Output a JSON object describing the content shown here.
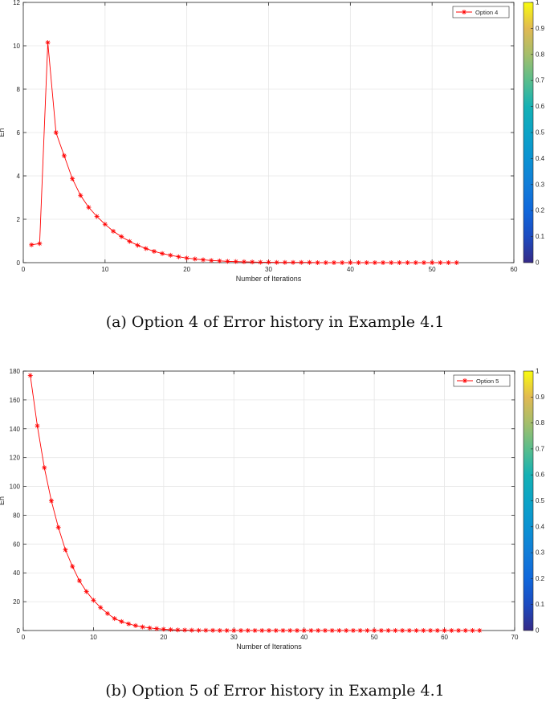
{
  "chart_data": [
    {
      "type": "line",
      "caption": "(a) Option 4 of Error history in Example 4.1",
      "xlabel": "Number of Iterations",
      "ylabel": "En",
      "xlim": [
        0,
        60
      ],
      "ylim": [
        0,
        12
      ],
      "xticks": [
        0,
        10,
        20,
        30,
        40,
        50,
        60
      ],
      "yticks": [
        0,
        2,
        4,
        6,
        8,
        10,
        12
      ],
      "grid": true,
      "legend_position": "top-right",
      "series": [
        {
          "name": "Option 4",
          "color": "#ff0000",
          "marker": "asterisk",
          "x": [
            1,
            2,
            3,
            4,
            5,
            6,
            7,
            8,
            9,
            10,
            11,
            12,
            13,
            14,
            15,
            16,
            17,
            18,
            19,
            20,
            21,
            22,
            23,
            24,
            25,
            26,
            27,
            28,
            29,
            30,
            31,
            32,
            33,
            34,
            35,
            36,
            37,
            38,
            39,
            40,
            41,
            42,
            43,
            44,
            45,
            46,
            47,
            48,
            49,
            50,
            51,
            52,
            53
          ],
          "y": [
            0.82,
            0.88,
            10.15,
            6.0,
            4.93,
            3.87,
            3.1,
            2.55,
            2.13,
            1.77,
            1.45,
            1.2,
            0.98,
            0.8,
            0.65,
            0.52,
            0.42,
            0.34,
            0.27,
            0.21,
            0.17,
            0.13,
            0.1,
            0.08,
            0.06,
            0.05,
            0.04,
            0.03,
            0.02,
            0.02,
            0.01,
            0.01,
            0.01,
            0.01,
            0.01,
            0.0,
            0.0,
            0.0,
            0.0,
            0.0,
            0.0,
            0.0,
            0.0,
            0.0,
            0.0,
            0.0,
            0.0,
            0.0,
            0.0,
            0.0,
            0.0,
            0.0,
            0.0
          ]
        }
      ],
      "colorbar": {
        "range": [
          0,
          1
        ],
        "ticks": [
          "0",
          "0.1",
          "0.2",
          "0.3",
          "0.4",
          "0.5",
          "0.6",
          "0.7",
          "0.8",
          "0.9",
          "1"
        ]
      }
    },
    {
      "type": "line",
      "caption": "(b) Option 5 of Error history in Example 4.1",
      "xlabel": "Number of Iterations",
      "ylabel": "En",
      "xlim": [
        0,
        70
      ],
      "ylim": [
        0,
        180
      ],
      "xticks": [
        0,
        10,
        20,
        30,
        40,
        50,
        60,
        70
      ],
      "yticks": [
        0,
        20,
        40,
        60,
        80,
        100,
        120,
        140,
        160,
        180
      ],
      "grid": true,
      "legend_position": "top-right",
      "series": [
        {
          "name": "Option 5",
          "color": "#ff0000",
          "marker": "asterisk",
          "x": [
            1,
            2,
            3,
            4,
            5,
            6,
            7,
            8,
            9,
            10,
            11,
            12,
            13,
            14,
            15,
            16,
            17,
            18,
            19,
            20,
            21,
            22,
            23,
            24,
            25,
            26,
            27,
            28,
            29,
            30,
            31,
            32,
            33,
            34,
            35,
            36,
            37,
            38,
            39,
            40,
            41,
            42,
            43,
            44,
            45,
            46,
            47,
            48,
            49,
            50,
            51,
            52,
            53,
            54,
            55,
            56,
            57,
            58,
            59,
            60,
            61,
            62,
            63,
            64,
            65
          ],
          "y": [
            177,
            142,
            113,
            90,
            71.5,
            56,
            44.5,
            34.5,
            27,
            21,
            16,
            11.8,
            8.3,
            6.2,
            4.6,
            3.4,
            2.5,
            1.8,
            1.3,
            0.9,
            0.6,
            0.4,
            0.3,
            0.2,
            0.1,
            0.1,
            0.1,
            0,
            0,
            0,
            0,
            0,
            0,
            0,
            0,
            0,
            0,
            0,
            0,
            0,
            0,
            0,
            0,
            0,
            0,
            0,
            0,
            0,
            0,
            0,
            0,
            0,
            0,
            0,
            0,
            0,
            0,
            0,
            0,
            0,
            0,
            0,
            0,
            0,
            0
          ]
        }
      ],
      "colorbar": {
        "range": [
          0,
          1
        ],
        "ticks": [
          "0",
          "0.1",
          "0.2",
          "0.3",
          "0.4",
          "0.5",
          "0.6",
          "0.7",
          "0.8",
          "0.9",
          "1"
        ]
      }
    }
  ]
}
